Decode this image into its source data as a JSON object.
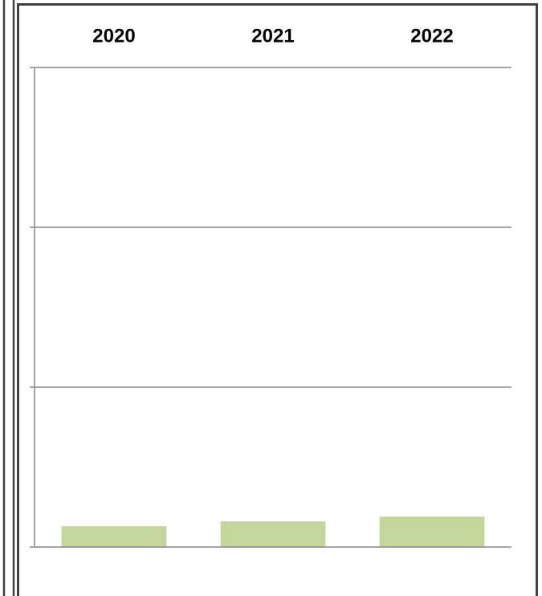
{
  "chart_data": {
    "type": "bar",
    "categories": [
      "2020",
      "2021",
      "2022"
    ],
    "values": [
      0.13,
      0.16,
      0.19
    ],
    "color": "#c4d79b",
    "ylim": [
      0,
      3
    ],
    "yticks": [
      0,
      1,
      2,
      3
    ],
    "grid": true
  }
}
